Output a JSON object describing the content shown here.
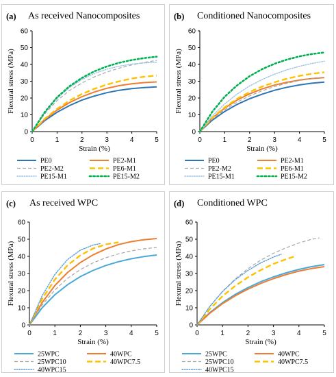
{
  "chart_data": [
    {
      "type": "line",
      "panel_label": "(a)",
      "title": "As received Nanocomposites",
      "xlabel": "Strain (%)",
      "ylabel": "Flexural stress (MPa)",
      "xlim": [
        0,
        5
      ],
      "ylim": [
        0,
        60
      ],
      "x_ticks": [
        0,
        1,
        2,
        3,
        4,
        5
      ],
      "y_ticks": [
        0,
        10,
        20,
        30,
        40,
        50,
        60
      ],
      "grid": false,
      "legend_position": "bottom",
      "x": [
        0,
        0.5,
        1,
        1.5,
        2,
        2.5,
        3,
        3.5,
        4,
        4.5,
        5
      ],
      "series": [
        {
          "name": "PE0",
          "color": "#2e75b6",
          "dash": "solid",
          "values": [
            0,
            6.5,
            11.5,
            15.5,
            18.8,
            21.2,
            23.2,
            24.6,
            25.6,
            26.2,
            26.6
          ]
        },
        {
          "name": "PE2-M1",
          "color": "#ed7d31",
          "dash": "solid",
          "values": [
            0,
            7.2,
            12.8,
            17.3,
            20.8,
            23.6,
            25.8,
            27.4,
            28.5,
            29.2,
            29.6
          ]
        },
        {
          "name": "PE2-M2",
          "color": "#a5a5a5",
          "dash": "dash",
          "values": [
            0,
            10.5,
            18.5,
            24.5,
            29.0,
            32.6,
            35.5,
            37.8,
            39.7,
            41.2,
            42.4
          ]
        },
        {
          "name": "PE6-M1",
          "color": "#ffc000",
          "dash": "longdash",
          "values": [
            0,
            7.6,
            13.6,
            18.5,
            22.4,
            25.5,
            28.0,
            30.0,
            31.6,
            32.7,
            33.4
          ]
        },
        {
          "name": "PE15-M1",
          "color": "#9dc3e6",
          "dash": "dot",
          "values": [
            0,
            11.2,
            19.8,
            26.3,
            31.0,
            34.6,
            37.2,
            39.0,
            40.2,
            40.9,
            41.3
          ]
        },
        {
          "name": "PE15-M2",
          "color": "#00b050",
          "dash": "bigdot",
          "values": [
            0,
            11.5,
            20.4,
            27.0,
            32.0,
            35.9,
            38.8,
            41.0,
            42.6,
            43.8,
            44.6
          ]
        }
      ]
    },
    {
      "type": "line",
      "panel_label": "(b)",
      "title": "Conditioned Nanocomposites",
      "xlabel": "Strain (%)",
      "ylabel": "Flexural stress (MPa)",
      "xlim": [
        0,
        5
      ],
      "ylim": [
        0,
        60
      ],
      "x_ticks": [
        0,
        1,
        2,
        3,
        4,
        5
      ],
      "y_ticks": [
        0,
        10,
        20,
        30,
        40,
        50,
        60
      ],
      "grid": false,
      "legend_position": "bottom",
      "x": [
        0,
        0.5,
        1,
        1.5,
        2,
        2.5,
        3,
        3.5,
        4,
        4.5,
        5
      ],
      "series": [
        {
          "name": "PE0",
          "color": "#2e75b6",
          "dash": "solid",
          "values": [
            0,
            6.8,
            12.0,
            16.2,
            19.6,
            22.3,
            24.6,
            26.4,
            27.8,
            28.8,
            29.5
          ]
        },
        {
          "name": "PE2-M1",
          "color": "#ed7d31",
          "dash": "solid",
          "values": [
            0,
            8.0,
            14.0,
            18.8,
            22.5,
            25.4,
            27.7,
            29.4,
            30.7,
            31.6,
            32.2
          ]
        },
        {
          "name": "PE2-M2",
          "color": "#a5a5a5",
          "dash": "dash",
          "values": [
            0,
            7.4,
            13.0,
            17.6,
            21.3,
            24.3,
            26.8,
            28.8,
            30.4,
            31.6,
            32.4
          ]
        },
        {
          "name": "PE6-M1",
          "color": "#ffc000",
          "dash": "longdash",
          "values": [
            0,
            8.2,
            14.5,
            19.6,
            23.6,
            26.8,
            29.4,
            31.5,
            33.2,
            34.5,
            35.3
          ]
        },
        {
          "name": "PE15-M1",
          "color": "#9dc3e6",
          "dash": "dot",
          "values": [
            0,
            9.3,
            16.5,
            22.4,
            27.2,
            31.0,
            34.2,
            36.8,
            38.9,
            40.6,
            41.9
          ]
        },
        {
          "name": "PE15-M2",
          "color": "#00b050",
          "dash": "bigdot",
          "values": [
            0,
            11.8,
            20.8,
            27.6,
            33.0,
            37.2,
            40.4,
            42.9,
            44.8,
            46.2,
            47.1
          ]
        }
      ]
    },
    {
      "type": "line",
      "panel_label": "(c)",
      "title": "As received WPC",
      "xlabel": "Strain (%)",
      "ylabel": "Flexural stress (MPa)",
      "xlim": [
        0,
        5
      ],
      "ylim": [
        0,
        60
      ],
      "x_ticks": [
        0,
        1,
        2,
        3,
        4,
        5
      ],
      "y_ticks": [
        0,
        10,
        20,
        30,
        40,
        50,
        60
      ],
      "grid": false,
      "legend_position": "bottom",
      "series": [
        {
          "name": "25WPC",
          "color": "#4aa8d8",
          "dash": "solid",
          "x": [
            0,
            0.5,
            1,
            1.5,
            2,
            2.5,
            3,
            3.5,
            4,
            4.5,
            5
          ],
          "values": [
            0,
            10.0,
            17.6,
            23.5,
            28.2,
            31.8,
            34.7,
            36.9,
            38.6,
            39.9,
            40.8
          ]
        },
        {
          "name": "40WPC",
          "color": "#ed7d31",
          "dash": "solid",
          "x": [
            0,
            0.5,
            1,
            1.5,
            2,
            2.5,
            3,
            3.5,
            4,
            4.5,
            5
          ],
          "values": [
            0,
            13.0,
            23.0,
            30.6,
            36.4,
            40.9,
            44.3,
            46.9,
            48.6,
            49.7,
            50.4
          ]
        },
        {
          "name": "25WPC10",
          "color": "#a5a5a5",
          "dash": "dash",
          "x": [
            0,
            0.5,
            1,
            1.5,
            2,
            2.5,
            3,
            3.5,
            4,
            4.5,
            5
          ],
          "values": [
            0,
            11.6,
            20.4,
            27.2,
            32.3,
            36.2,
            39.2,
            41.5,
            43.2,
            44.4,
            45.2
          ]
        },
        {
          "name": "40WPC7.5",
          "color": "#ffc000",
          "dash": "longdash",
          "x": [
            0,
            0.5,
            1,
            1.5,
            2,
            2.5,
            3,
            3.5
          ],
          "values": [
            0,
            15.2,
            26.5,
            34.8,
            40.6,
            44.6,
            47.0,
            48.2
          ]
        },
        {
          "name": "40WPC15",
          "color": "#5b9bd5",
          "dash": "dot",
          "x": [
            0,
            0.5,
            1,
            1.5,
            2,
            2.5,
            2.8
          ],
          "values": [
            0,
            17.0,
            29.5,
            38.2,
            43.6,
            46.6,
            47.5
          ]
        }
      ]
    },
    {
      "type": "line",
      "panel_label": "(d)",
      "title": "Conditioned WPC",
      "xlabel": "Strain (%)",
      "ylabel": "Flexural stress (MPa)",
      "xlim": [
        0,
        5
      ],
      "ylim": [
        0,
        60
      ],
      "x_ticks": [
        0,
        1,
        2,
        3,
        4,
        5
      ],
      "y_ticks": [
        0,
        10,
        20,
        30,
        40,
        50,
        60
      ],
      "grid": false,
      "legend_position": "bottom",
      "series": [
        {
          "name": "25WPC",
          "color": "#4aa8d8",
          "dash": "solid",
          "x": [
            0,
            0.5,
            1,
            1.5,
            2,
            2.5,
            3,
            3.5,
            4,
            4.5,
            5
          ],
          "values": [
            0,
            7.2,
            13.0,
            17.8,
            21.8,
            25.2,
            28.0,
            30.4,
            32.4,
            34.0,
            35.2
          ]
        },
        {
          "name": "40WPC",
          "color": "#ed7d31",
          "dash": "solid",
          "x": [
            0,
            0.5,
            1,
            1.5,
            2,
            2.5,
            3,
            3.5,
            4,
            4.5,
            5
          ],
          "values": [
            0,
            6.8,
            12.4,
            17.0,
            20.9,
            24.2,
            27.0,
            29.4,
            31.4,
            32.9,
            34.0
          ]
        },
        {
          "name": "25WPC10",
          "color": "#a5a5a5",
          "dash": "dash",
          "x": [
            0,
            0.5,
            1,
            1.5,
            2,
            2.5,
            3,
            3.5,
            4,
            4.5,
            4.8
          ],
          "values": [
            0,
            10.8,
            19.6,
            26.8,
            32.8,
            37.8,
            41.8,
            45.0,
            47.8,
            50.0,
            50.7
          ]
        },
        {
          "name": "40WPC7.5",
          "color": "#ffc000",
          "dash": "longdash",
          "x": [
            0,
            0.5,
            1,
            1.5,
            2,
            2.5,
            3,
            3.5,
            3.9
          ],
          "values": [
            0,
            9.2,
            16.8,
            22.8,
            27.8,
            32.0,
            35.6,
            38.4,
            40.3
          ]
        },
        {
          "name": "40WPC15",
          "color": "#5b9bd5",
          "dash": "dot",
          "x": [
            0,
            0.5,
            1,
            1.5,
            2,
            2.5,
            3,
            3.3
          ],
          "values": [
            0,
            10.8,
            19.5,
            26.4,
            31.8,
            36.2,
            39.6,
            41.2
          ]
        }
      ]
    }
  ]
}
